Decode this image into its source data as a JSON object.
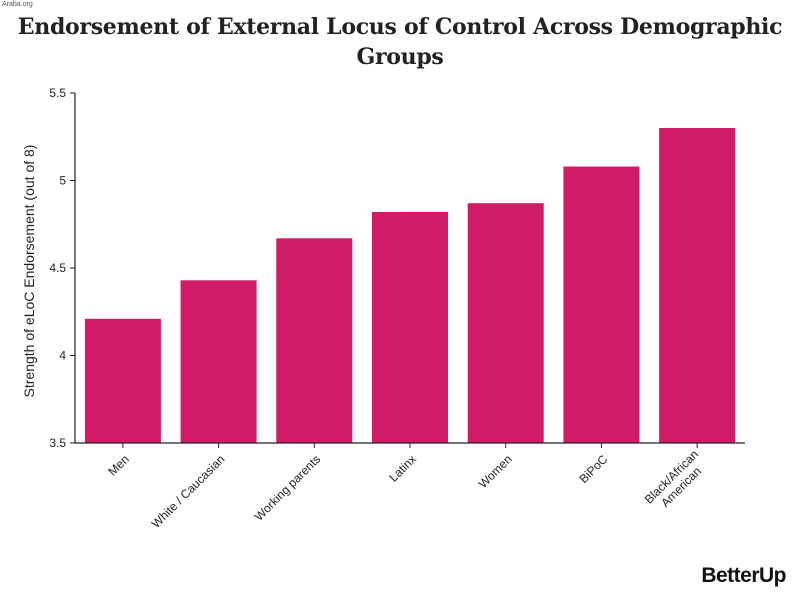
{
  "watermark": "Araba.org",
  "chart_data": {
    "type": "bar",
    "title_lines": [
      "Endorsement of External Locus of Control Across Demographic",
      "Groups"
    ],
    "ylabel": "Strength of eLoC Endorsement (out of 8)",
    "xlabel": "",
    "ylim": [
      3.5,
      5.5
    ],
    "yticks": [
      3.5,
      4,
      4.5,
      5,
      5.5
    ],
    "ytick_labels": [
      "3.5",
      "4",
      "4.5",
      "5",
      "5.5"
    ],
    "categories": [
      "Men",
      "White / Caucasian",
      "Working parents",
      "Latinx",
      "Women",
      "BiPoC",
      "Black/African American"
    ],
    "category_label_lines": [
      [
        "Men"
      ],
      [
        "White / Caucasian"
      ],
      [
        "Working parents"
      ],
      [
        "Latinx"
      ],
      [
        "Women"
      ],
      [
        "BiPoC"
      ],
      [
        "Black/African",
        "American"
      ]
    ],
    "values": [
      4.21,
      4.43,
      4.67,
      4.82,
      4.87,
      5.08,
      5.3
    ],
    "bar_color": "#d21b66",
    "grid": false,
    "legend": "none"
  },
  "brand": {
    "logo_text": "BetterUp"
  }
}
